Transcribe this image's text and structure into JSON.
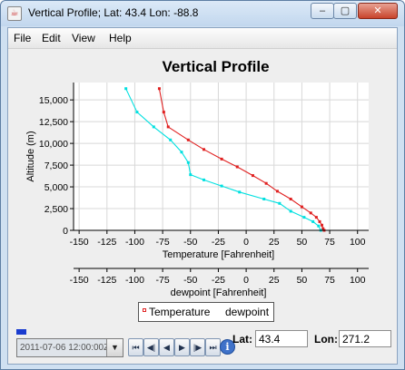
{
  "window": {
    "title": "Vertical Profile; Lat: 43.4 Lon: -88.8",
    "minimize_glyph": "–",
    "maximize_glyph": "▢",
    "close_glyph": "✕",
    "app_icon": "java-cup-icon",
    "app_icon_glyph": "☕"
  },
  "menu": {
    "items": [
      "File",
      "Edit",
      "View",
      "Help"
    ]
  },
  "chart_data": {
    "type": "line",
    "title": "Vertical Profile",
    "ylabel": "Altitude (m)",
    "ylim": [
      0,
      17000
    ],
    "y_ticks": [
      "0",
      "2,500",
      "5,000",
      "7,500",
      "10,000",
      "12,500",
      "15,000"
    ],
    "y_tick_values": [
      0,
      2500,
      5000,
      7500,
      10000,
      12500,
      15000
    ],
    "grid": true,
    "x_axes": [
      {
        "label": "Temperature [Fahrenheit]",
        "xlim": [
          -155,
          110
        ],
        "ticks": [
          "-150",
          "-125",
          "-100",
          "-75",
          "-50",
          "-25",
          "0",
          "25",
          "50",
          "75",
          "100"
        ],
        "tick_values": [
          -150,
          -125,
          -100,
          -75,
          -50,
          -25,
          0,
          25,
          50,
          75,
          100
        ]
      },
      {
        "label": "dewpoint [Fahrenheit]",
        "xlim": [
          -155,
          110
        ],
        "ticks": [
          "-150",
          "-125",
          "-100",
          "-75",
          "-50",
          "-25",
          "0",
          "25",
          "50",
          "75",
          "100"
        ],
        "tick_values": [
          -150,
          -125,
          -100,
          -75,
          -50,
          -25,
          0,
          25,
          50,
          75,
          100
        ]
      }
    ],
    "series": [
      {
        "name": "Temperature",
        "color": "#e02020",
        "points": [
          [
            -78,
            16300
          ],
          [
            -74,
            13600
          ],
          [
            -70,
            11900
          ],
          [
            -52,
            10400
          ],
          [
            -38,
            9300
          ],
          [
            -22,
            8200
          ],
          [
            -8,
            7300
          ],
          [
            6,
            6300
          ],
          [
            18,
            5400
          ],
          [
            28,
            4500
          ],
          [
            40,
            3600
          ],
          [
            50,
            2700
          ],
          [
            58,
            2000
          ],
          [
            63,
            1500
          ],
          [
            66,
            1000
          ],
          [
            68,
            600
          ],
          [
            69,
            200
          ],
          [
            70,
            0
          ]
        ]
      },
      {
        "name": "dewpoint",
        "color": "#00e0e0",
        "points": [
          [
            -108,
            16300
          ],
          [
            -98,
            13600
          ],
          [
            -83,
            11900
          ],
          [
            -68,
            10400
          ],
          [
            -58,
            9000
          ],
          [
            -52,
            7800
          ],
          [
            -50,
            6400
          ],
          [
            -38,
            5800
          ],
          [
            -22,
            5100
          ],
          [
            -6,
            4400
          ],
          [
            16,
            3600
          ],
          [
            30,
            3100
          ],
          [
            40,
            2200
          ],
          [
            52,
            1500
          ],
          [
            60,
            1000
          ],
          [
            65,
            500
          ],
          [
            67,
            0
          ]
        ]
      }
    ],
    "legend": "bottom",
    "legend_entries": [
      "Temperature",
      "dewpoint"
    ]
  },
  "controls": {
    "time_value": "2011-07-06 12:00:00Z",
    "dropdown_glyph": "▼",
    "animation_buttons": [
      {
        "name": "first-frame-icon",
        "glyph": "⏮"
      },
      {
        "name": "step-back-icon",
        "glyph": "◀|"
      },
      {
        "name": "play-backward-icon",
        "glyph": "◀"
      },
      {
        "name": "play-forward-icon",
        "glyph": "▶"
      },
      {
        "name": "step-forward-icon",
        "glyph": "|▶"
      },
      {
        "name": "last-frame-icon",
        "glyph": "⏭"
      }
    ],
    "info_glyph": "i",
    "lat_label": "Lat:",
    "lat_value": "43.4",
    "lon_label": "Lon:",
    "lon_value": "271.2"
  }
}
